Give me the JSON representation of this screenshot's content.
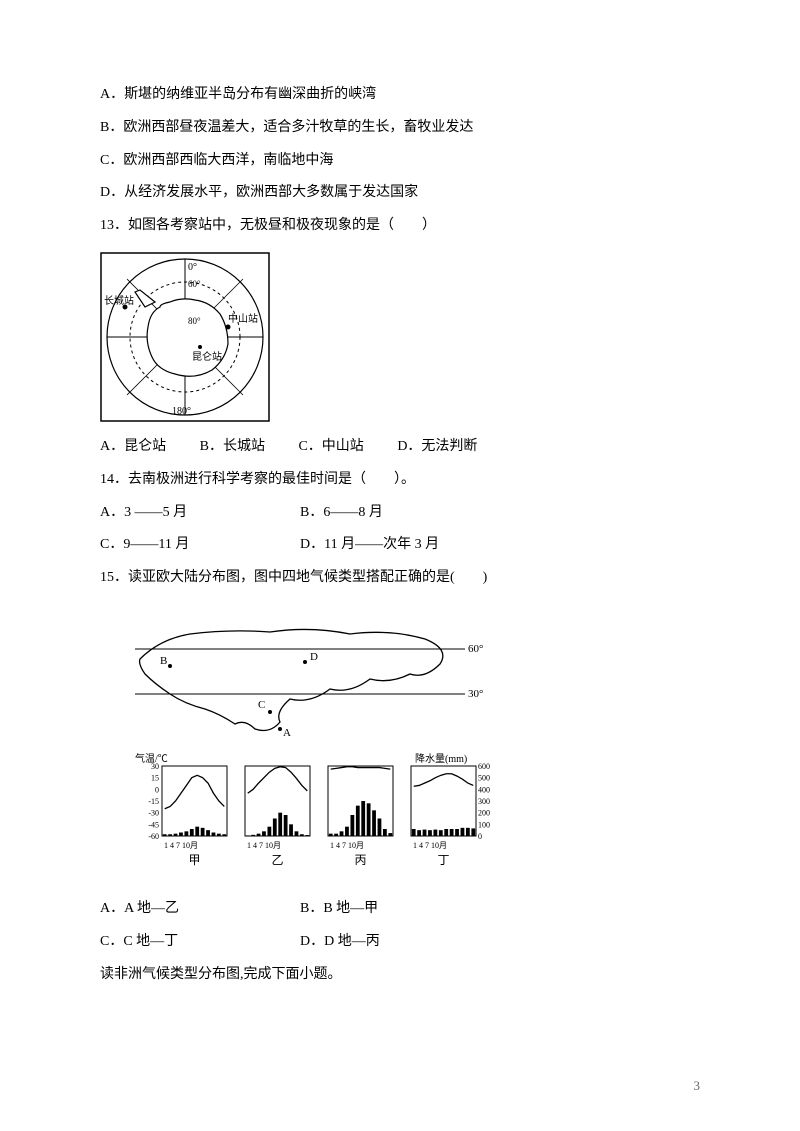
{
  "q12": {
    "opt_a": "A．斯堪的纳维亚半岛分布有幽深曲折的峡湾",
    "opt_b": "B．欧洲西部昼夜温差大，适合多汁牧草的生长，畜牧业发达",
    "opt_c": "C．欧洲西部西临大西洋，南临地中海",
    "opt_d": "D．从经济发展水平，欧洲西部大多数属于发达国家"
  },
  "q13": {
    "stem": "13．如图各考察站中，无极昼和极夜现象的是（　　）",
    "opt_a": "A．昆仑站",
    "opt_b": "B．长城站",
    "opt_c": "C．中山站",
    "opt_d": "D．无法判断",
    "map": {
      "labels": {
        "top": "0°",
        "top_inner": "60°",
        "center": "80°",
        "bottom": "180°",
        "changcheng": "长城站",
        "zhongshan": "中山站",
        "kunlun": "昆仑站"
      }
    }
  },
  "q14": {
    "stem": "14．去南极洲进行科学考察的最佳时间是（　　）。",
    "opt_a": "A．3 ——5 月",
    "opt_b": "B．6——8 月",
    "opt_c": "C．9——11 月",
    "opt_d": "D．11 月——次年 3 月"
  },
  "q15": {
    "stem": "15．读亚欧大陆分布图，图中四地气候类型搭配正确的是(　　)",
    "opt_a": "A．A 地—乙",
    "opt_b": "B．B 地—甲",
    "opt_c": "C．C 地—丁",
    "opt_d": "D．D 地—丙",
    "map": {
      "lat_lines": [
        "60°",
        "30°"
      ],
      "points": [
        "B",
        "D",
        "C",
        "A"
      ]
    },
    "charts": {
      "temp_label": "气温/℃",
      "precip_label": "降水量(mm)",
      "temp_ticks": [
        "30",
        "15",
        "0",
        "-15",
        "-30",
        "-45",
        "-60"
      ],
      "precip_ticks": [
        "600",
        "500",
        "400",
        "300",
        "200",
        "100",
        "0"
      ],
      "x_ticks": "1 4 7 10月",
      "names": [
        "甲",
        "乙",
        "丙",
        "丁"
      ],
      "series": {
        "jia": {
          "temp": [
            -25,
            -22,
            -15,
            -5,
            5,
            15,
            18,
            15,
            8,
            -5,
            -15,
            -22
          ],
          "precip": [
            15,
            15,
            20,
            30,
            40,
            60,
            80,
            70,
            50,
            30,
            20,
            15
          ]
        },
        "yi": {
          "temp": [
            -5,
            0,
            8,
            15,
            22,
            27,
            29,
            28,
            22,
            14,
            5,
            -2
          ],
          "precip": [
            5,
            10,
            20,
            40,
            80,
            150,
            200,
            180,
            100,
            40,
            15,
            8
          ]
        },
        "bing": {
          "temp": [
            26,
            27,
            28,
            29,
            29,
            28,
            28,
            28,
            28,
            28,
            27,
            26
          ],
          "precip": [
            20,
            20,
            40,
            80,
            180,
            260,
            300,
            280,
            220,
            150,
            60,
            25
          ]
        },
        "ding": {
          "temp": [
            4,
            5,
            8,
            11,
            15,
            18,
            20,
            20,
            17,
            13,
            8,
            5
          ],
          "precip": [
            60,
            50,
            55,
            50,
            55,
            50,
            60,
            60,
            60,
            70,
            70,
            65
          ]
        }
      }
    }
  },
  "next_section": "读非洲气候类型分布图,完成下面小题。",
  "page_number": "3"
}
